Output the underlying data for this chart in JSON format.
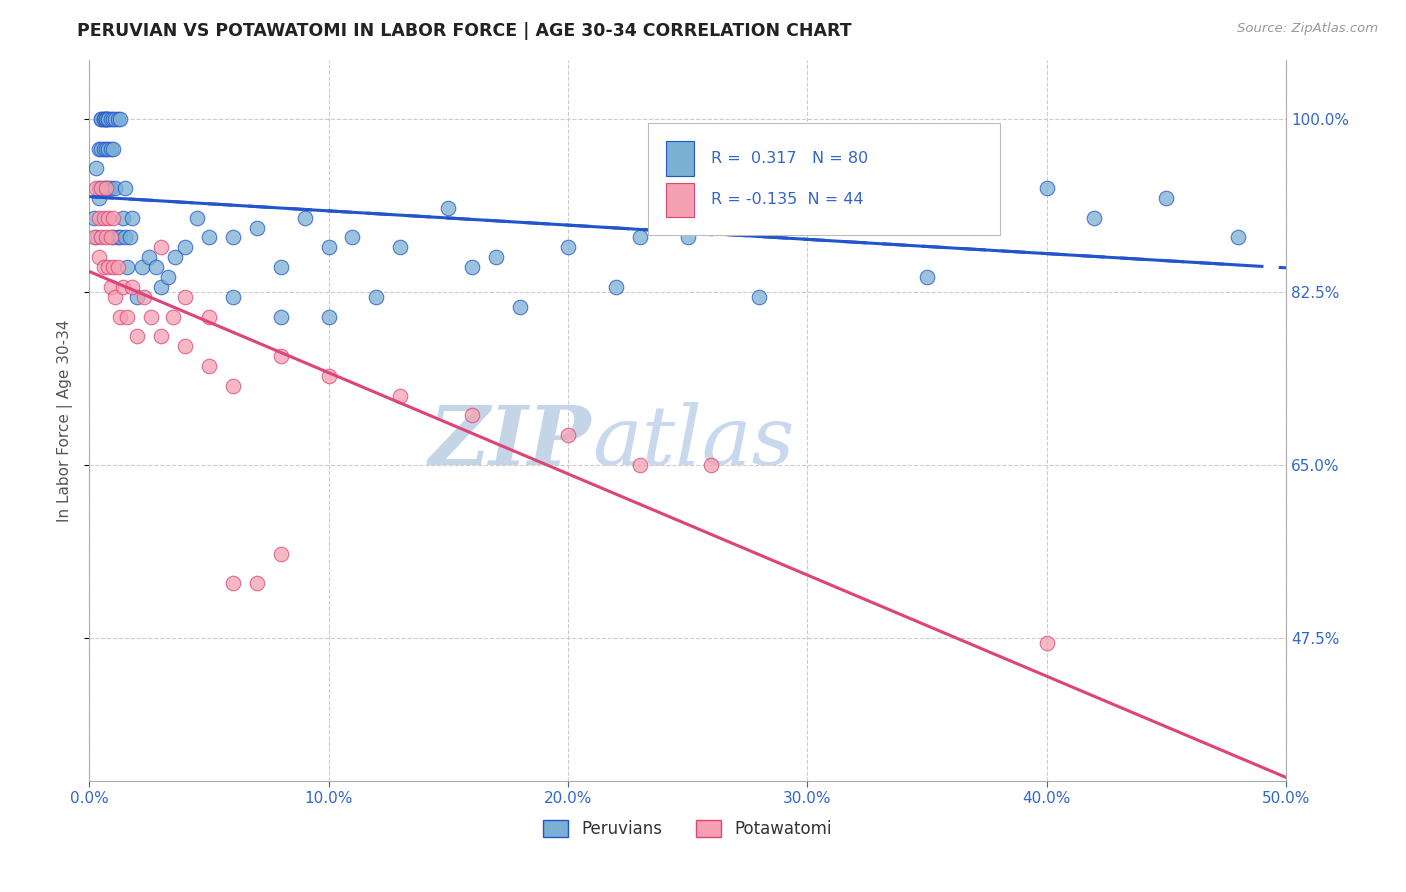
{
  "title": "PERUVIAN VS POTAWATOMI IN LABOR FORCE | AGE 30-34 CORRELATION CHART",
  "source_text": "Source: ZipAtlas.com",
  "ylabel": "In Labor Force | Age 30-34",
  "xlim": [
    0.0,
    0.5
  ],
  "ylim": [
    0.33,
    1.06
  ],
  "xtick_labels": [
    "0.0%",
    "10.0%",
    "20.0%",
    "30.0%",
    "40.0%",
    "50.0%"
  ],
  "xtick_vals": [
    0.0,
    0.1,
    0.2,
    0.3,
    0.4,
    0.5
  ],
  "ytick_labels": [
    "47.5%",
    "65.0%",
    "82.5%",
    "100.0%"
  ],
  "ytick_vals": [
    0.475,
    0.65,
    0.825,
    1.0
  ],
  "grid_color": "#cccccc",
  "background_color": "#ffffff",
  "title_color": "#333333",
  "axis_label_color": "#555555",
  "tick_color": "#3366cc",
  "blue_color": "#7bafd4",
  "pink_color": "#f4a0b0",
  "blue_line_color": "#2255cc",
  "pink_line_color": "#dd4477",
  "legend_R1": "0.317",
  "legend_N1": "80",
  "legend_R2": "-0.135",
  "legend_N2": "44",
  "blue_x": [
    0.002,
    0.003,
    0.003,
    0.004,
    0.004,
    0.004,
    0.005,
    0.005,
    0.005,
    0.006,
    0.006,
    0.006,
    0.006,
    0.007,
    0.007,
    0.007,
    0.007,
    0.007,
    0.008,
    0.008,
    0.008,
    0.008,
    0.009,
    0.009,
    0.009,
    0.01,
    0.01,
    0.01,
    0.011,
    0.011,
    0.012,
    0.012,
    0.013,
    0.013,
    0.014,
    0.015,
    0.015,
    0.016,
    0.017,
    0.018,
    0.02,
    0.022,
    0.025,
    0.028,
    0.03,
    0.033,
    0.036,
    0.04,
    0.045,
    0.05,
    0.06,
    0.07,
    0.08,
    0.09,
    0.1,
    0.11,
    0.13,
    0.15,
    0.17,
    0.2,
    0.23,
    0.26,
    0.29,
    0.31,
    0.34,
    0.37,
    0.4,
    0.42,
    0.45,
    0.48,
    0.06,
    0.08,
    0.1,
    0.12,
    0.18,
    0.22,
    0.28,
    0.35,
    0.25,
    0.16
  ],
  "blue_y": [
    0.9,
    0.95,
    0.88,
    0.92,
    0.97,
    0.93,
    0.97,
    1.0,
    1.0,
    1.0,
    1.0,
    0.97,
    0.93,
    1.0,
    1.0,
    1.0,
    0.97,
    0.93,
    1.0,
    1.0,
    0.97,
    0.93,
    1.0,
    0.97,
    0.93,
    1.0,
    0.97,
    0.88,
    1.0,
    0.93,
    1.0,
    0.88,
    1.0,
    0.88,
    0.9,
    0.93,
    0.88,
    0.85,
    0.88,
    0.9,
    0.82,
    0.85,
    0.86,
    0.85,
    0.83,
    0.84,
    0.86,
    0.87,
    0.9,
    0.88,
    0.88,
    0.89,
    0.85,
    0.9,
    0.87,
    0.88,
    0.87,
    0.91,
    0.86,
    0.87,
    0.88,
    0.89,
    0.91,
    0.9,
    0.92,
    0.93,
    0.93,
    0.9,
    0.92,
    0.88,
    0.82,
    0.8,
    0.8,
    0.82,
    0.81,
    0.83,
    0.82,
    0.84,
    0.88,
    0.85
  ],
  "pink_x": [
    0.002,
    0.003,
    0.004,
    0.004,
    0.005,
    0.005,
    0.006,
    0.006,
    0.007,
    0.007,
    0.008,
    0.008,
    0.009,
    0.009,
    0.01,
    0.01,
    0.011,
    0.012,
    0.013,
    0.014,
    0.016,
    0.018,
    0.02,
    0.023,
    0.026,
    0.03,
    0.035,
    0.04,
    0.05,
    0.06,
    0.03,
    0.04,
    0.05,
    0.08,
    0.1,
    0.13,
    0.16,
    0.2,
    0.23,
    0.26,
    0.06,
    0.07,
    0.08,
    0.4
  ],
  "pink_y": [
    0.88,
    0.93,
    0.9,
    0.86,
    0.93,
    0.88,
    0.9,
    0.85,
    0.93,
    0.88,
    0.9,
    0.85,
    0.88,
    0.83,
    0.9,
    0.85,
    0.82,
    0.85,
    0.8,
    0.83,
    0.8,
    0.83,
    0.78,
    0.82,
    0.8,
    0.78,
    0.8,
    0.77,
    0.75,
    0.73,
    0.87,
    0.82,
    0.8,
    0.76,
    0.74,
    0.72,
    0.7,
    0.68,
    0.65,
    0.65,
    0.53,
    0.53,
    0.56,
    0.47
  ],
  "watermark_top": "ZIP",
  "watermark_bot": "atlas",
  "watermark_color_top": "#c5d5e8",
  "watermark_color_bot": "#c8d8ee"
}
